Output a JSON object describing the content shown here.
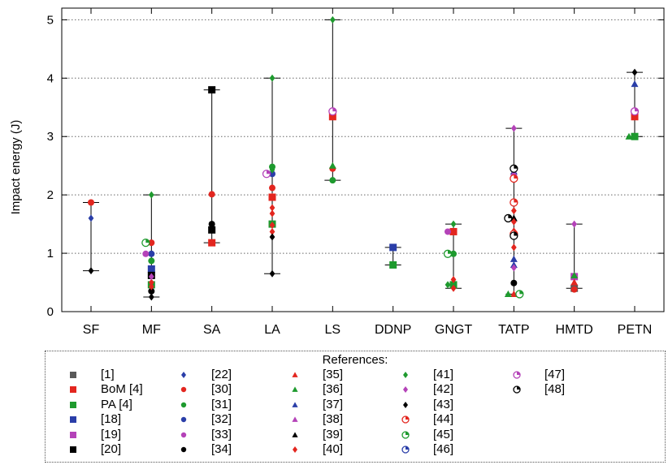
{
  "chart_data": {
    "type": "scatter",
    "ylabel": "Impact energy (J)",
    "xlabel": "",
    "ylim": [
      0,
      5.2
    ],
    "yticks": [
      0,
      1,
      2,
      3,
      4,
      5
    ],
    "grid": "y-dotted",
    "categories": [
      "SF",
      "MF",
      "SA",
      "LA",
      "LS",
      "DDNP",
      "GNGT",
      "TATP",
      "HMTD",
      "PETN"
    ],
    "ranges": [
      {
        "category": "SF",
        "min": 0.7,
        "max": 1.87
      },
      {
        "category": "MF",
        "min": 0.25,
        "max": 2.0
      },
      {
        "category": "SA",
        "min": 1.18,
        "max": 3.8
      },
      {
        "category": "LA",
        "min": 0.65,
        "max": 4.0
      },
      {
        "category": "LS",
        "min": 2.25,
        "max": 5.0
      },
      {
        "category": "DDNP",
        "min": 0.8,
        "max": 1.1
      },
      {
        "category": "GNGT",
        "min": 0.4,
        "max": 1.5
      },
      {
        "category": "TATP",
        "min": 0.3,
        "max": 3.14
      },
      {
        "category": "HMTD",
        "min": 0.4,
        "max": 1.5
      },
      {
        "category": "PETN",
        "min": 3.0,
        "max": 4.1
      }
    ],
    "legend_title": "References:",
    "series": [
      {
        "name": "[1]",
        "marker": "square",
        "color": "#595959",
        "points": [
          {
            "x": "HMTD",
            "y": 0.4
          }
        ]
      },
      {
        "name": "BoM [4]",
        "marker": "square",
        "color": "#e3261f",
        "points": [
          {
            "x": "SA",
            "y": 1.18
          },
          {
            "x": "LA",
            "y": 1.96
          },
          {
            "x": "LS",
            "y": 3.34
          },
          {
            "x": "GNGT",
            "y": 1.37
          },
          {
            "x": "PETN",
            "y": 3.34
          }
        ]
      },
      {
        "name": "PA [4]",
        "marker": "square",
        "color": "#1e9a2e",
        "points": [
          {
            "x": "MF",
            "y": 0.46
          },
          {
            "x": "LA",
            "y": 1.5
          },
          {
            "x": "DDNP",
            "y": 0.8
          },
          {
            "x": "GNGT",
            "y": 0.46
          },
          {
            "x": "PETN",
            "y": 3.0
          }
        ]
      },
      {
        "name": "[18]",
        "marker": "square",
        "color": "#2a3ea8",
        "points": [
          {
            "x": "MF",
            "y": 0.73
          },
          {
            "x": "DDNP",
            "y": 1.1
          }
        ]
      },
      {
        "name": "[19]",
        "marker": "square",
        "color": "#b442b8",
        "points": [
          {
            "x": "HMTD",
            "y": 0.6
          }
        ]
      },
      {
        "name": "[20]",
        "marker": "square",
        "color": "#000000",
        "points": [
          {
            "x": "MF",
            "y": 0.62
          },
          {
            "x": "SA",
            "y": 3.8
          },
          {
            "x": "SA",
            "y": 1.4
          }
        ]
      },
      {
        "name": "[22]",
        "marker": "diamond",
        "color": "#2a3ea8",
        "points": [
          {
            "x": "SF",
            "y": 1.6
          }
        ]
      },
      {
        "name": "[30]",
        "marker": "circle",
        "color": "#e3261f",
        "points": [
          {
            "x": "SF",
            "y": 1.87
          },
          {
            "x": "MF",
            "y": 1.18
          },
          {
            "x": "SA",
            "y": 2.01
          },
          {
            "x": "LA",
            "y": 2.12
          },
          {
            "x": "LS",
            "y": 2.45
          },
          {
            "x": "HMTD",
            "y": 0.38
          }
        ]
      },
      {
        "name": "[31]",
        "marker": "circle",
        "color": "#1e9a2e",
        "points": [
          {
            "x": "MF",
            "y": 0.87
          },
          {
            "x": "LA",
            "y": 2.48
          },
          {
            "x": "LS",
            "y": 2.25
          },
          {
            "x": "GNGT",
            "y": 0.99
          }
        ]
      },
      {
        "name": "[32]",
        "marker": "circle",
        "color": "#2a3ea8",
        "points": [
          {
            "x": "MF",
            "y": 0.99
          },
          {
            "x": "LA",
            "y": 2.36
          }
        ]
      },
      {
        "name": "[33]",
        "marker": "circle",
        "color": "#b442b8",
        "points": [
          {
            "x": "MF",
            "y": 0.99
          },
          {
            "x": "GNGT",
            "y": 1.37
          }
        ]
      },
      {
        "name": "[34]",
        "marker": "circle",
        "color": "#000000",
        "points": [
          {
            "x": "MF",
            "y": 0.35
          },
          {
            "x": "SA",
            "y": 1.5
          },
          {
            "x": "TATP",
            "y": 0.49
          }
        ]
      },
      {
        "name": "[35]",
        "marker": "triangle",
        "color": "#e3261f",
        "points": [
          {
            "x": "TATP",
            "y": 0.3
          },
          {
            "x": "HMTD",
            "y": 0.5
          }
        ]
      },
      {
        "name": "[36]",
        "marker": "triangle",
        "color": "#1e9a2e",
        "points": [
          {
            "x": "LS",
            "y": 2.5
          },
          {
            "x": "TATP",
            "y": 0.3
          },
          {
            "x": "HMTD",
            "y": 0.62
          },
          {
            "x": "PETN",
            "y": 3.0
          }
        ]
      },
      {
        "name": "[37]",
        "marker": "triangle",
        "color": "#2a3ea8",
        "points": [
          {
            "x": "TATP",
            "y": 2.4
          },
          {
            "x": "TATP",
            "y": 0.9
          },
          {
            "x": "TATP",
            "y": 0.8
          },
          {
            "x": "PETN",
            "y": 3.9
          }
        ]
      },
      {
        "name": "[38]",
        "marker": "triangle",
        "color": "#b442b8",
        "points": [
          {
            "x": "TATP",
            "y": 2.37
          }
        ]
      },
      {
        "name": "[39]",
        "marker": "triangle",
        "color": "#000000",
        "points": [
          {
            "x": "TATP",
            "y": 1.6
          }
        ]
      },
      {
        "name": "[40]",
        "marker": "diamond",
        "color": "#e3261f",
        "points": [
          {
            "x": "MF",
            "y": 0.5
          },
          {
            "x": "MF",
            "y": 0.43
          },
          {
            "x": "LA",
            "y": 1.97
          },
          {
            "x": "LA",
            "y": 1.78
          },
          {
            "x": "LA",
            "y": 1.68
          },
          {
            "x": "LA",
            "y": 1.48
          },
          {
            "x": "LA",
            "y": 1.37
          },
          {
            "x": "GNGT",
            "y": 0.55
          },
          {
            "x": "GNGT",
            "y": 0.4
          },
          {
            "x": "TATP",
            "y": 1.73
          },
          {
            "x": "TATP",
            "y": 1.54
          },
          {
            "x": "TATP",
            "y": 1.38
          },
          {
            "x": "TATP",
            "y": 1.1
          }
        ]
      },
      {
        "name": "[41]",
        "marker": "diamond",
        "color": "#1e9a2e",
        "points": [
          {
            "x": "MF",
            "y": 2.0
          },
          {
            "x": "LA",
            "y": 4.0
          },
          {
            "x": "LA",
            "y": 2.43
          },
          {
            "x": "LS",
            "y": 5.0
          },
          {
            "x": "GNGT",
            "y": 1.5
          },
          {
            "x": "GNGT",
            "y": 0.46
          }
        ]
      },
      {
        "name": "[42]",
        "marker": "diamond",
        "color": "#b442b8",
        "points": [
          {
            "x": "MF",
            "y": 0.6
          },
          {
            "x": "TATP",
            "y": 3.14
          },
          {
            "x": "TATP",
            "y": 0.75
          },
          {
            "x": "HMTD",
            "y": 1.5
          }
        ]
      },
      {
        "name": "[43]",
        "marker": "diamond",
        "color": "#000000",
        "points": [
          {
            "x": "SF",
            "y": 0.7
          },
          {
            "x": "MF",
            "y": 0.25
          },
          {
            "x": "LA",
            "y": 1.28
          },
          {
            "x": "LA",
            "y": 0.65
          },
          {
            "x": "PETN",
            "y": 4.1
          }
        ]
      },
      {
        "name": "[44]",
        "marker": "half-circle",
        "color": "#e3261f",
        "points": [
          {
            "x": "TATP",
            "y": 2.28
          },
          {
            "x": "TATP",
            "y": 1.87
          },
          {
            "x": "TATP",
            "y": 1.33
          }
        ]
      },
      {
        "name": "[45]",
        "marker": "half-circle",
        "color": "#1e9a2e",
        "points": [
          {
            "x": "MF",
            "y": 1.18
          },
          {
            "x": "GNGT",
            "y": 0.99
          },
          {
            "x": "TATP",
            "y": 0.3
          }
        ]
      },
      {
        "name": "[46]",
        "marker": "half-circle",
        "color": "#2a3ea8",
        "points": []
      },
      {
        "name": "[47]",
        "marker": "half-circle",
        "color": "#b442b8",
        "points": [
          {
            "x": "LA",
            "y": 2.36
          },
          {
            "x": "LS",
            "y": 3.43
          },
          {
            "x": "PETN",
            "y": 3.43
          }
        ]
      },
      {
        "name": "[48]",
        "marker": "half-circle",
        "color": "#000000",
        "points": [
          {
            "x": "TATP",
            "y": 2.45
          },
          {
            "x": "TATP",
            "y": 1.6
          },
          {
            "x": "TATP",
            "y": 1.3
          }
        ]
      }
    ]
  }
}
